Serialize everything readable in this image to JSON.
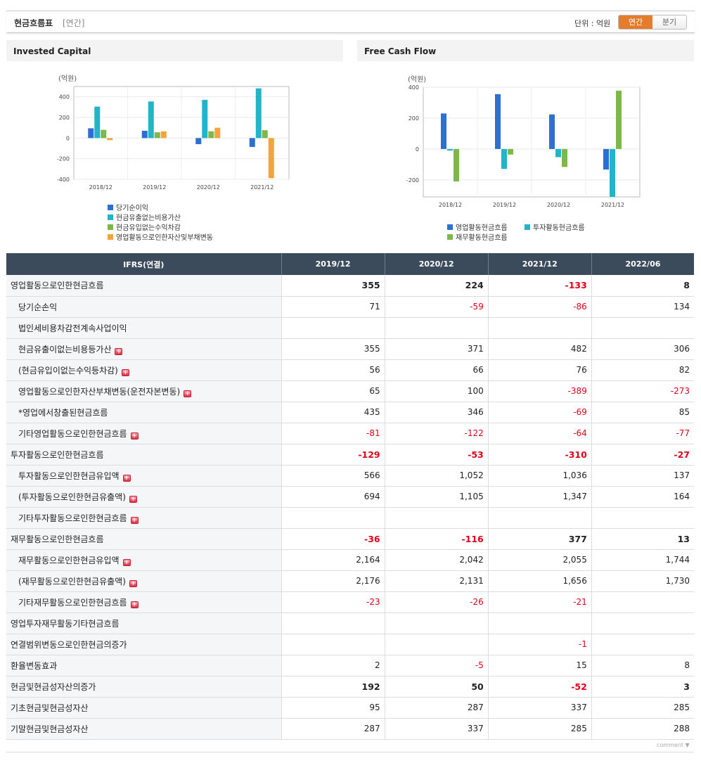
{
  "header": {
    "title": "현금흐름표",
    "sub": "[연간]",
    "unit": "단위 : 억원",
    "toggle": [
      "연간",
      "분기"
    ]
  },
  "chart_data": [
    {
      "type": "bar",
      "title": "Invested Capital",
      "ylabel": "(억원)",
      "categories": [
        "2018/12",
        "2019/12",
        "2020/12",
        "2021/12"
      ],
      "ylim": [
        -400,
        500
      ],
      "yticks": [
        400,
        200,
        0,
        -200,
        -400
      ],
      "series": [
        {
          "name": "당기순이익",
          "color": "#2d6fd2",
          "values": [
            95,
            71,
            -59,
            -86
          ]
        },
        {
          "name": "현금유출없는비용가산",
          "color": "#22b5c8",
          "values": [
            305,
            355,
            371,
            482
          ]
        },
        {
          "name": "현금유입없는수익차감",
          "color": "#7eb74a",
          "values": [
            80,
            56,
            66,
            76
          ]
        },
        {
          "name": "영업활동으로인한자산및부채변동",
          "color": "#f3a43a",
          "values": [
            -20,
            65,
            100,
            -389
          ]
        }
      ]
    },
    {
      "type": "bar",
      "title": "Free Cash Flow",
      "ylabel": "(억원)",
      "categories": [
        "2018/12",
        "2019/12",
        "2020/12",
        "2021/12"
      ],
      "ylim": [
        -310,
        400
      ],
      "yticks": [
        400,
        200,
        0,
        -200
      ],
      "series": [
        {
          "name": "영업활동현금흐름",
          "color": "#2d6fd2",
          "values": [
            230,
            355,
            224,
            -133
          ]
        },
        {
          "name": "투자활동현금흐름",
          "color": "#22b5c8",
          "values": [
            -10,
            -129,
            -53,
            -310
          ]
        },
        {
          "name": "재무활동현금흐름",
          "color": "#7eb74a",
          "values": [
            -210,
            -36,
            -116,
            377
          ]
        }
      ]
    }
  ],
  "table": {
    "head": [
      "IFRS(연결)",
      "2019/12",
      "2020/12",
      "2021/12",
      "2022/06"
    ],
    "rows": [
      {
        "label": "영업활동으로인한현금흐름",
        "values": [
          "355",
          "224",
          "-133",
          "8"
        ],
        "bold": true
      },
      {
        "label": "당기순손익",
        "values": [
          "71",
          "-59",
          "-86",
          "134"
        ],
        "sub": true
      },
      {
        "label": "법인세비용차감전계속사업이익",
        "values": [
          "",
          "",
          "",
          ""
        ],
        "sub": true
      },
      {
        "label": "현금유출이없는비용등가산",
        "values": [
          "355",
          "371",
          "482",
          "306"
        ],
        "sub": true,
        "plus": true
      },
      {
        "label": "(현금유입이없는수익등차감)",
        "values": [
          "56",
          "66",
          "76",
          "82"
        ],
        "sub": true,
        "plus": true
      },
      {
        "label": "영업활동으로인한자산부채변동(운전자본변동)",
        "values": [
          "65",
          "100",
          "-389",
          "-273"
        ],
        "sub": true,
        "plus": true
      },
      {
        "label": "*영업에서창출된현금흐름",
        "values": [
          "435",
          "346",
          "-69",
          "85"
        ],
        "sub": true
      },
      {
        "label": "기타영업활동으로인한현금흐름",
        "values": [
          "-81",
          "-122",
          "-64",
          "-77"
        ],
        "sub": true,
        "plus": true
      },
      {
        "label": "투자활동으로인한현금흐름",
        "values": [
          "-129",
          "-53",
          "-310",
          "-27"
        ],
        "bold": true,
        "major": true
      },
      {
        "label": "투자활동으로인한현금유입액",
        "values": [
          "566",
          "1,052",
          "1,036",
          "137"
        ],
        "sub": true,
        "plus": true
      },
      {
        "label": "(투자활동으로인한현금유출액)",
        "values": [
          "694",
          "1,105",
          "1,347",
          "164"
        ],
        "sub": true,
        "plus": true
      },
      {
        "label": "기타투자활동으로인한현금흐름",
        "values": [
          "",
          "",
          "",
          ""
        ],
        "sub": true,
        "plus": true
      },
      {
        "label": "재무활동으로인한현금흐름",
        "values": [
          "-36",
          "-116",
          "377",
          "13"
        ],
        "bold": true,
        "major": true
      },
      {
        "label": "재무활동으로인한현금유입액",
        "values": [
          "2,164",
          "2,042",
          "2,055",
          "1,744"
        ],
        "sub": true,
        "plus": true
      },
      {
        "label": "(재무활동으로인한현금유출액)",
        "values": [
          "2,176",
          "2,131",
          "1,656",
          "1,730"
        ],
        "sub": true,
        "plus": true
      },
      {
        "label": "기타재무활동으로인한현금흐름",
        "values": [
          "-23",
          "-26",
          "-21",
          ""
        ],
        "sub": true,
        "plus": true
      },
      {
        "label": "영업투자재무활동기타현금흐름",
        "values": [
          "",
          "",
          "",
          ""
        ],
        "major": true
      },
      {
        "label": "연결범위변동으로인한현금의증가",
        "values": [
          "",
          "",
          "-1",
          ""
        ]
      },
      {
        "label": "환율변동효과",
        "values": [
          "2",
          "-5",
          "15",
          "8"
        ]
      },
      {
        "label": "현금및현금성자산의증가",
        "values": [
          "192",
          "50",
          "-52",
          "3"
        ],
        "bold": true
      },
      {
        "label": "기초현금및현금성자산",
        "values": [
          "95",
          "287",
          "337",
          "285"
        ]
      },
      {
        "label": "기말현금및현금성자산",
        "values": [
          "287",
          "337",
          "285",
          "288"
        ]
      }
    ]
  },
  "footer": {
    "comment": "comment ▼"
  }
}
